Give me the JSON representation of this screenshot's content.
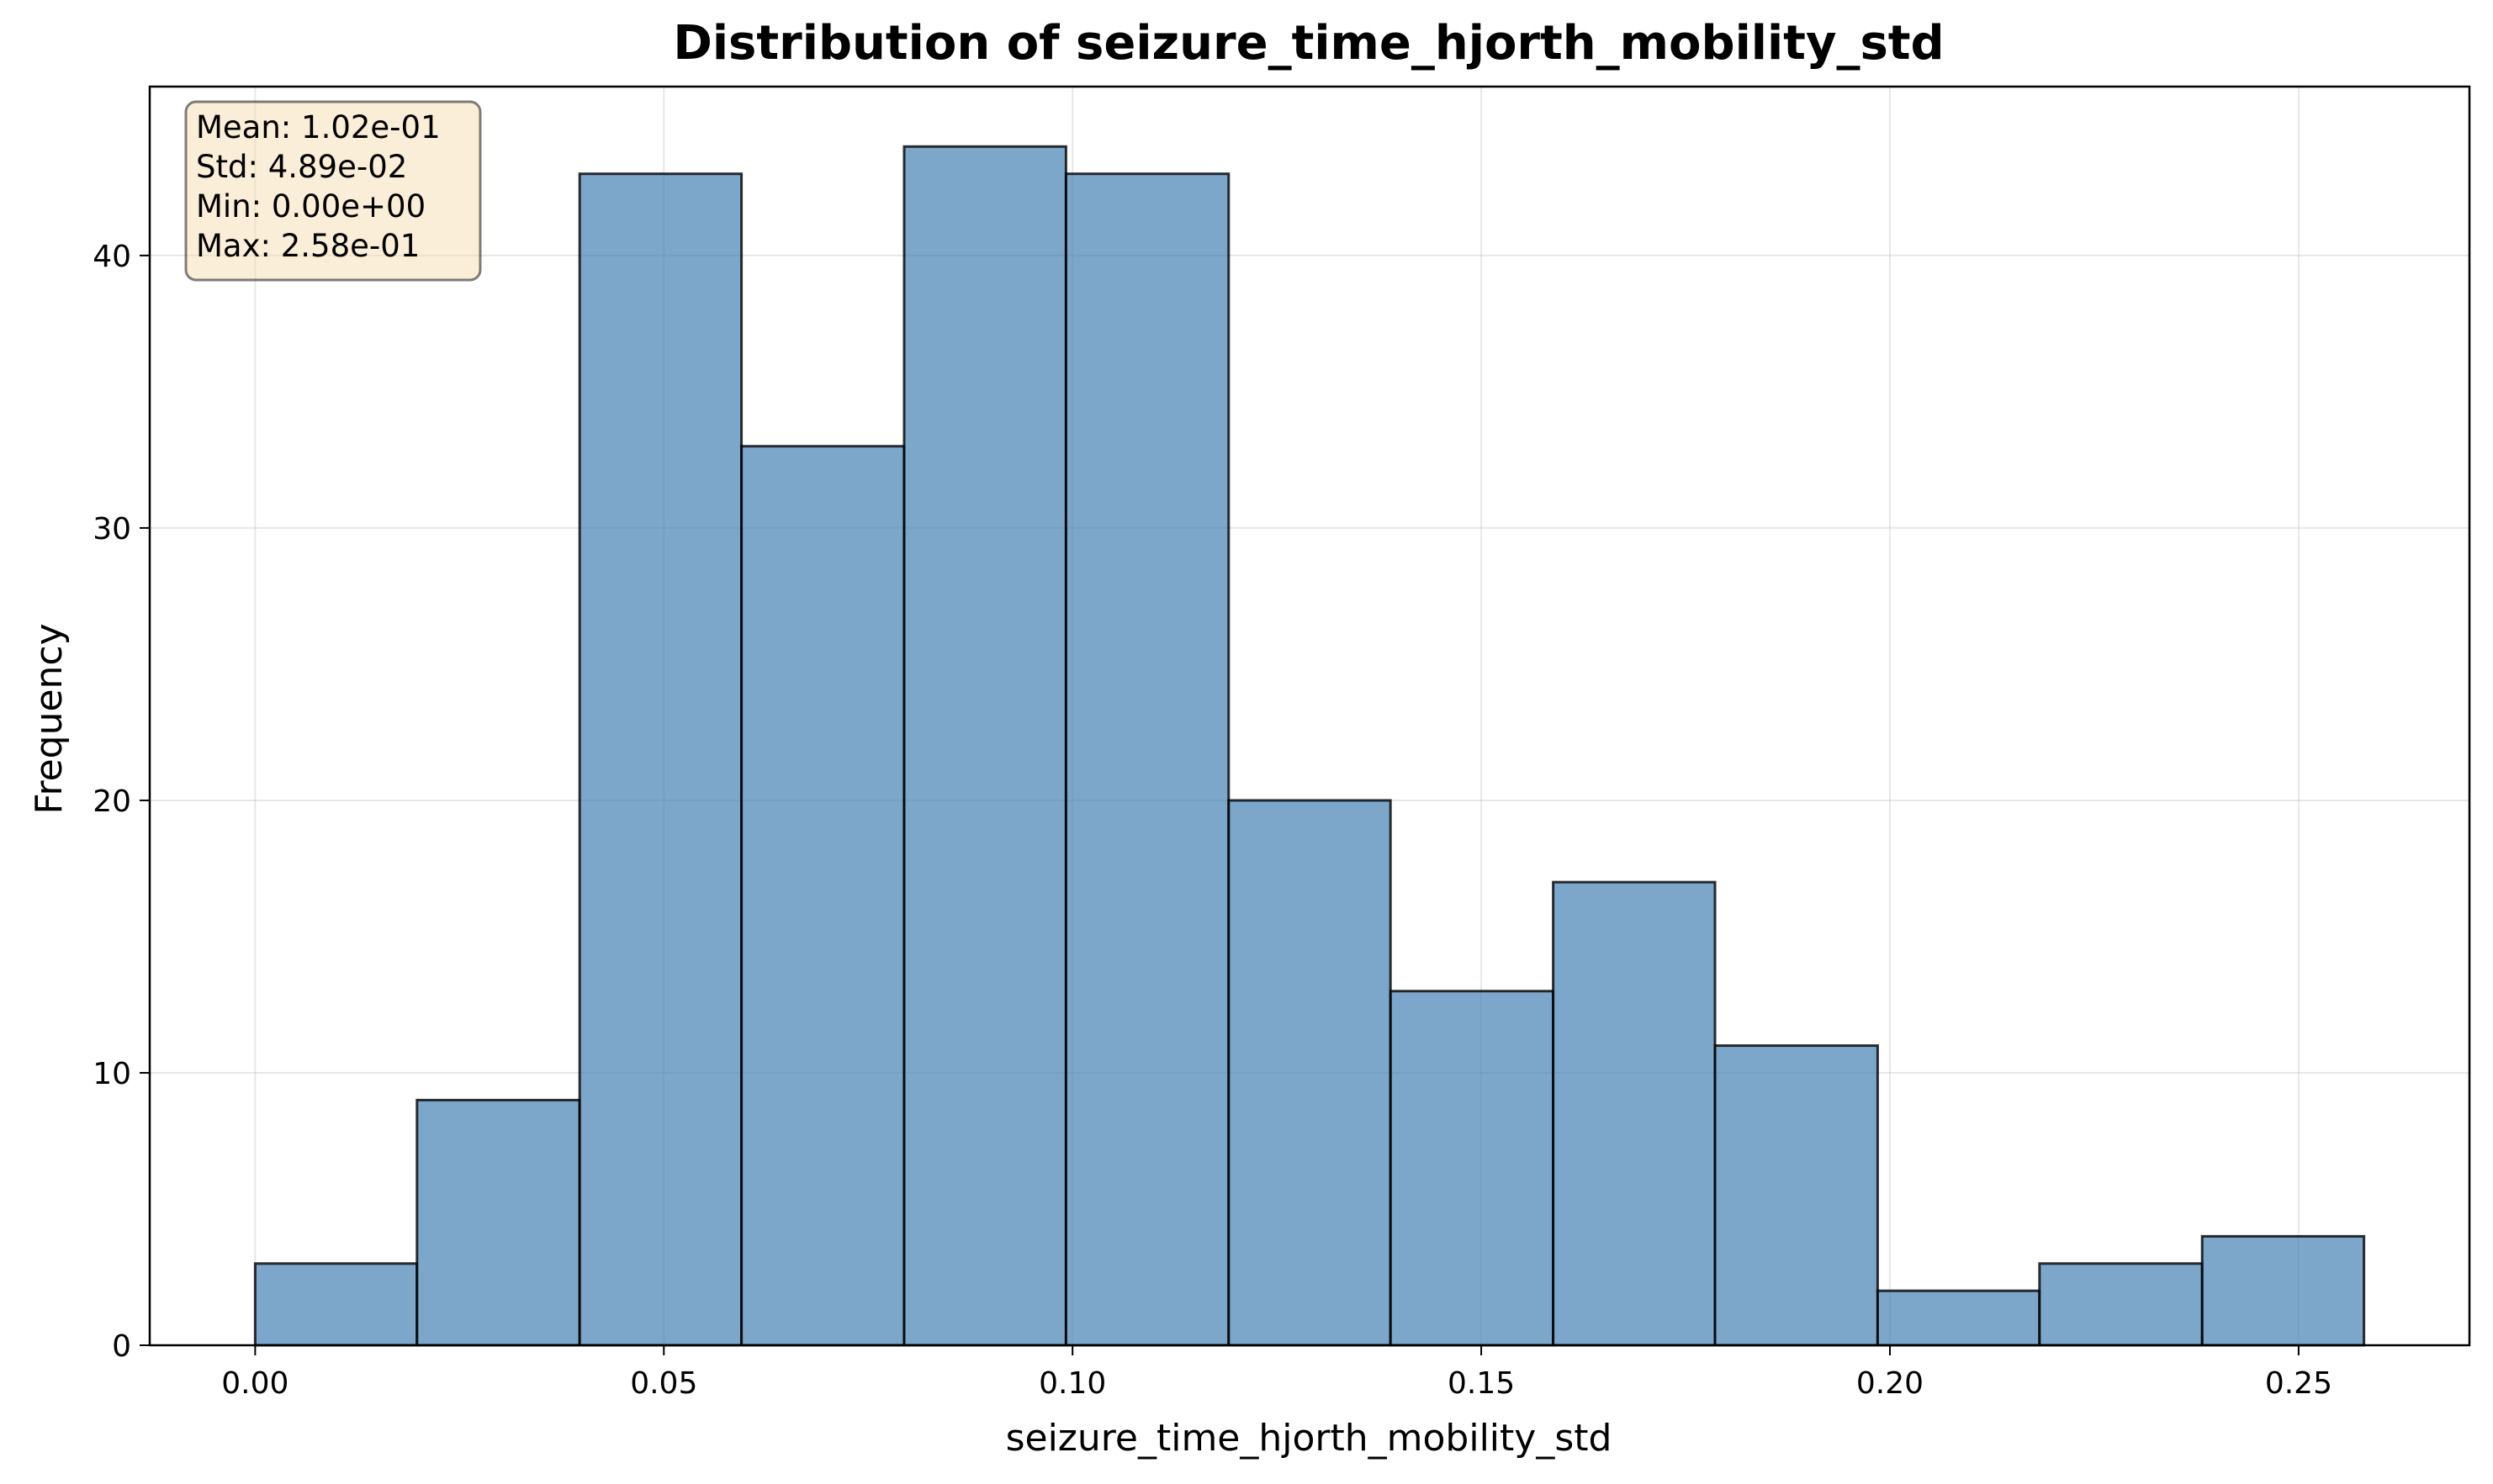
{
  "chart_data": {
    "type": "bar",
    "title": "Distribution of seizure_time_hjorth_mobility_std",
    "xlabel": "seizure_time_hjorth_mobility_std",
    "ylabel": "Frequency",
    "bin_edges": [
      0.0,
      0.0198,
      0.0397,
      0.0595,
      0.0794,
      0.0992,
      0.1191,
      0.1389,
      0.1588,
      0.1786,
      0.1985,
      0.2183,
      0.2382,
      0.258
    ],
    "values": [
      3,
      9,
      43,
      33,
      44,
      43,
      20,
      13,
      17,
      11,
      2,
      3,
      4
    ],
    "xlim": [
      -0.0129,
      0.2709
    ],
    "ylim": [
      0,
      46.2
    ],
    "xticks": [
      0.0,
      0.05,
      0.1,
      0.15,
      0.2,
      0.25
    ],
    "xtick_labels": [
      "0.00",
      "0.05",
      "0.10",
      "0.15",
      "0.20",
      "0.25"
    ],
    "yticks": [
      0,
      10,
      20,
      30,
      40
    ],
    "ytick_labels": [
      "0",
      "10",
      "20",
      "30",
      "40"
    ],
    "grid": true,
    "bar_color": "#4682b4",
    "bar_opacity": 0.7,
    "edge_color": "#000000",
    "stats_box": {
      "position": "top-left",
      "background": "#f5deb3",
      "lines": [
        "Mean: 1.02e-01",
        "Std: 4.89e-02",
        "Min: 0.00e+00",
        "Max: 2.58e-01"
      ]
    }
  }
}
